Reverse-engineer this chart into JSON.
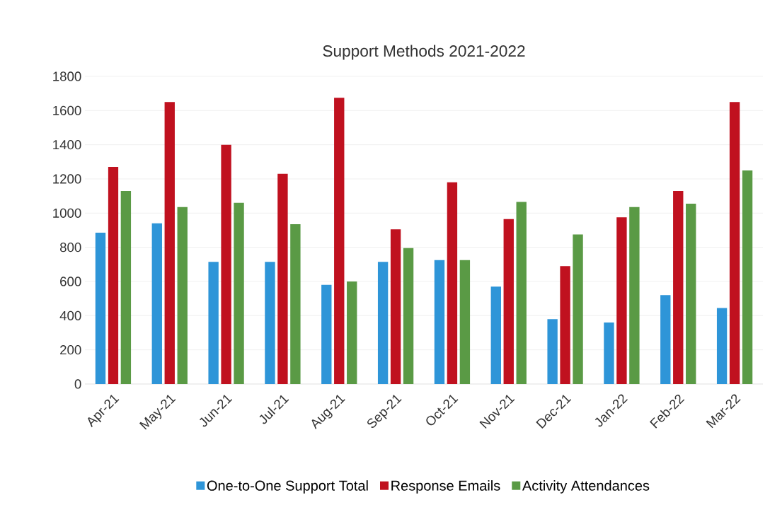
{
  "chart_data": {
    "type": "bar",
    "title": "Support Methods  2021-2022",
    "categories": [
      "Apr-21",
      "May-21",
      "Jun-21",
      "Jul-21",
      "Aug-21",
      "Sep-21",
      "Oct-21",
      "Nov-21",
      "Dec-21",
      "Jan-22",
      "Feb-22",
      "Mar-22"
    ],
    "series": [
      {
        "name": "One-to-One Support Total",
        "color": "#2e95d8",
        "values": [
          885,
          940,
          715,
          715,
          580,
          715,
          725,
          570,
          380,
          360,
          520,
          445
        ]
      },
      {
        "name": "Response Emails",
        "color": "#c0111f",
        "values": [
          1270,
          1650,
          1400,
          1230,
          1675,
          905,
          1180,
          965,
          690,
          975,
          1130,
          1650
        ]
      },
      {
        "name": "Activity Attendances",
        "color": "#5a9a45",
        "values": [
          1130,
          1035,
          1060,
          935,
          600,
          795,
          725,
          1065,
          875,
          1035,
          1055,
          1250
        ]
      }
    ],
    "ylim": [
      0,
      1800
    ],
    "yticks": [
      0,
      200,
      400,
      600,
      800,
      1000,
      1200,
      1400,
      1600,
      1800
    ],
    "grid": "y",
    "legend": "bottom"
  }
}
